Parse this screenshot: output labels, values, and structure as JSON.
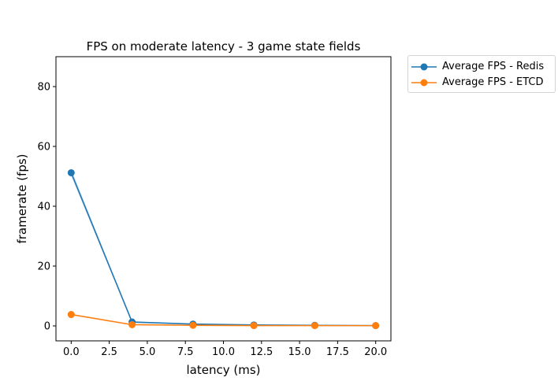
{
  "chart_data": {
    "type": "line",
    "title": "FPS on moderate latency - 3 game state fields",
    "xlabel": "latency (ms)",
    "ylabel": "framerate (fps)",
    "xlim": [
      -1.0,
      21.0
    ],
    "ylim": [
      -5,
      90
    ],
    "xticks": [
      0.0,
      2.5,
      5.0,
      7.5,
      10.0,
      12.5,
      15.0,
      17.5,
      20.0
    ],
    "xtick_labels": [
      "0.0",
      "2.5",
      "5.0",
      "7.5",
      "10.0",
      "12.5",
      "15.0",
      "17.5",
      "20.0"
    ],
    "yticks": [
      0,
      20,
      40,
      60,
      80
    ],
    "ytick_labels": [
      "0",
      "20",
      "40",
      "60",
      "80"
    ],
    "grid": false,
    "legend_position": "outside-top-right",
    "x": [
      0,
      4,
      8,
      12,
      16,
      20
    ],
    "series": [
      {
        "name": "Average FPS - Redis",
        "color": "#1f77b4",
        "values": [
          51.2,
          1.3,
          0.6,
          0.3,
          0.2,
          0.1
        ],
        "band_lower": [
          50.0,
          1.1,
          0.5,
          0.25,
          0.15,
          0.08
        ],
        "band_upper": [
          52.5,
          1.5,
          0.7,
          0.35,
          0.25,
          0.12
        ]
      },
      {
        "name": "Average FPS - ETCD",
        "color": "#ff7f0e",
        "values": [
          3.8,
          0.4,
          0.2,
          0.1,
          0.1,
          0.1
        ]
      }
    ]
  }
}
